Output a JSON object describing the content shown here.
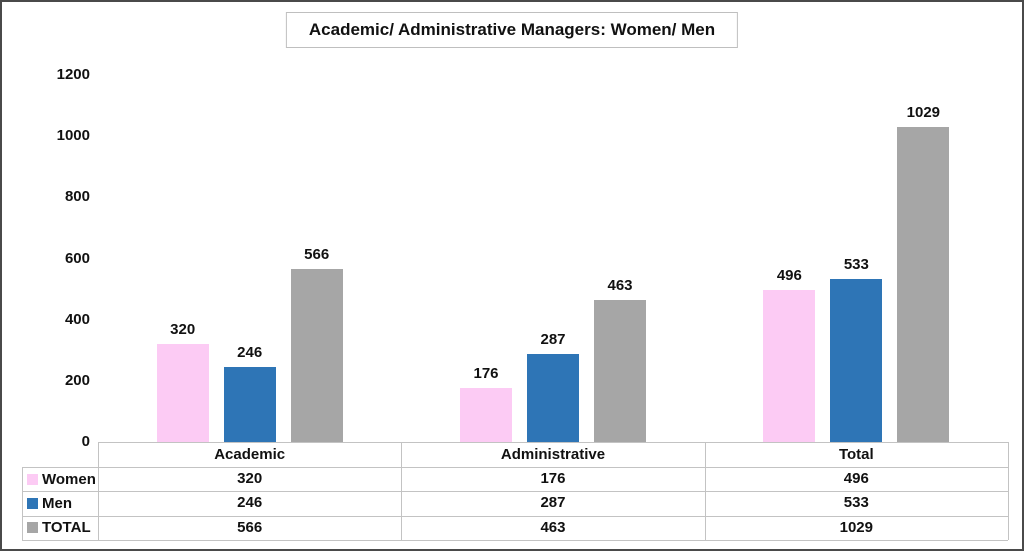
{
  "chart_data": {
    "type": "bar",
    "title": "Academic/ Administrative Managers: Women/ Men",
    "categories": [
      "Academic",
      "Administrative",
      "Total"
    ],
    "series": [
      {
        "name": "Women",
        "color": "#fccbf4",
        "values": [
          320,
          176,
          496
        ]
      },
      {
        "name": "Men",
        "color": "#2e75b6",
        "values": [
          246,
          287,
          533
        ]
      },
      {
        "name": "TOTAL",
        "color": "#a6a6a6",
        "values": [
          566,
          463,
          1029
        ]
      }
    ],
    "ylim": [
      0,
      1200
    ],
    "yticks": [
      0,
      200,
      400,
      600,
      800,
      1000,
      1200
    ],
    "xlabel": "",
    "ylabel": "",
    "grid": false,
    "data_labels": true,
    "legend_position": "data-table-left",
    "colors": {
      "outer_border": "#4a4a4a",
      "table_grid": "#c3c3c3",
      "text": "#111111",
      "background": "#ffffff"
    }
  }
}
